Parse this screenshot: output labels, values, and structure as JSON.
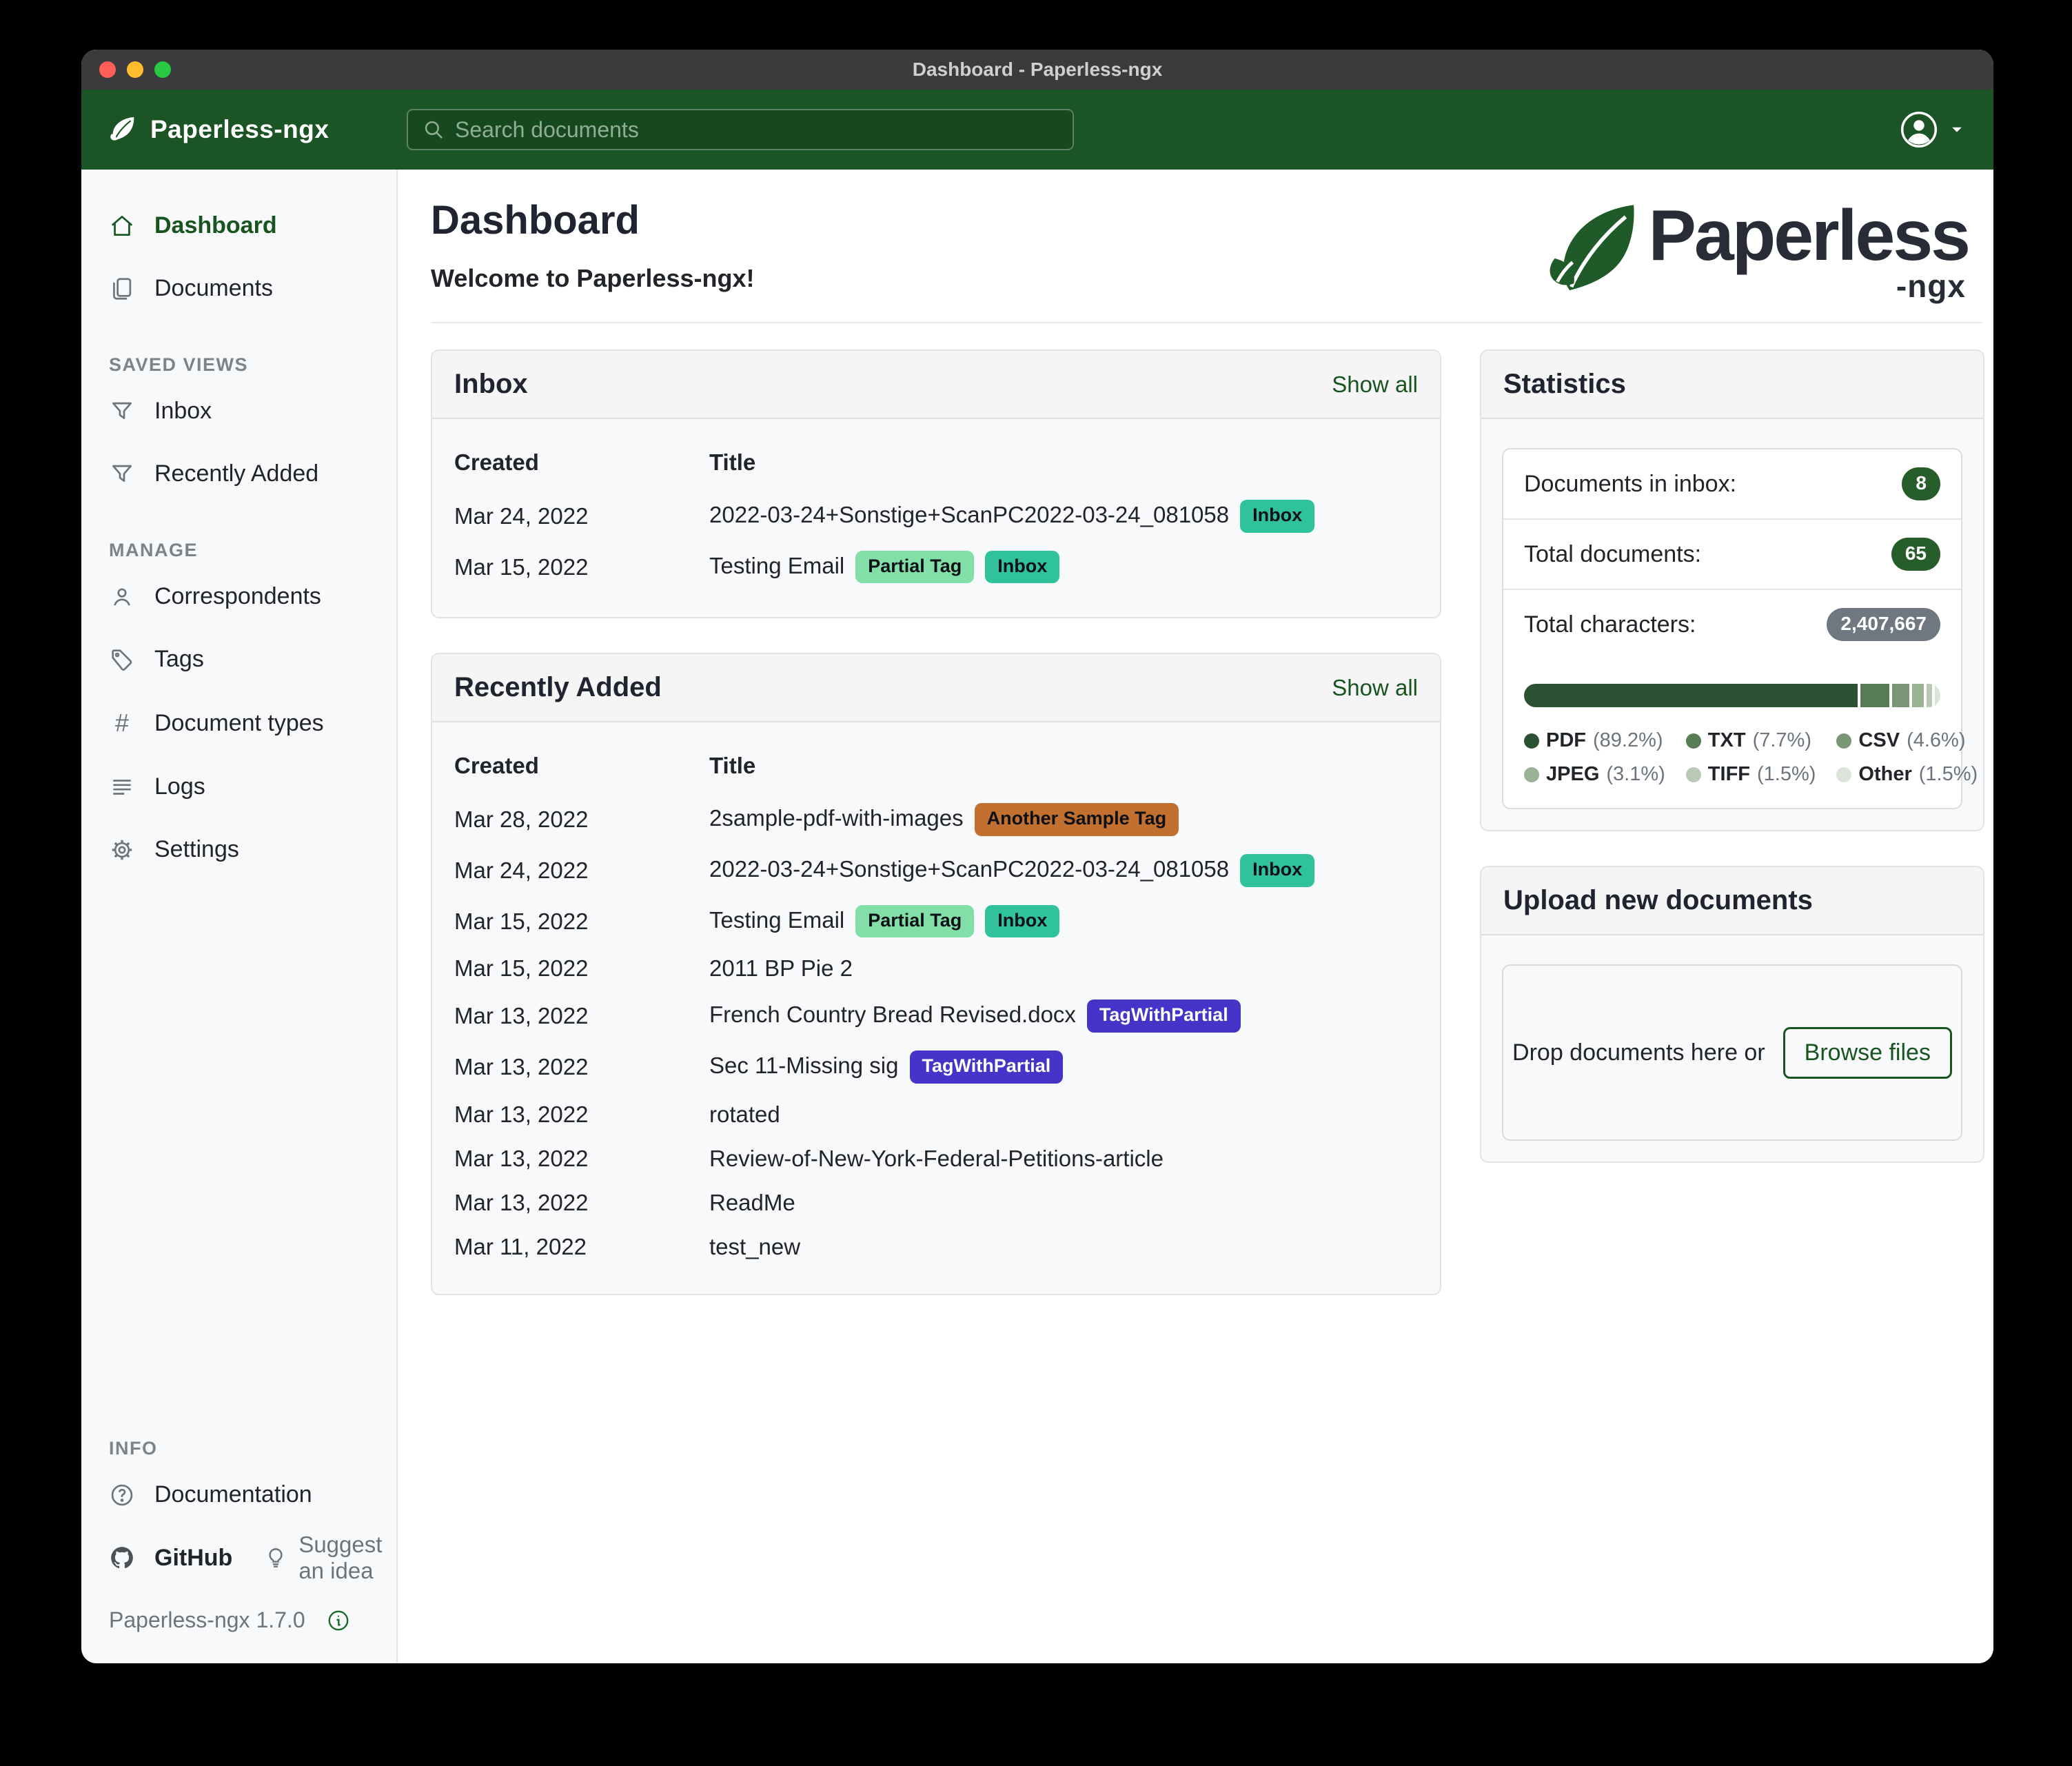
{
  "window": {
    "title": "Dashboard - Paperless-ngx"
  },
  "navbar": {
    "brand": "Paperless-ngx",
    "search_placeholder": "Search documents"
  },
  "sidebar": {
    "primary": [
      {
        "label": "Dashboard"
      },
      {
        "label": "Documents"
      }
    ],
    "sections": [
      {
        "heading": "SAVED VIEWS",
        "items": [
          {
            "label": "Inbox"
          },
          {
            "label": "Recently Added"
          }
        ]
      },
      {
        "heading": "MANAGE",
        "items": [
          {
            "label": "Correspondents"
          },
          {
            "label": "Tags"
          },
          {
            "label": "Document types"
          },
          {
            "label": "Logs"
          },
          {
            "label": "Settings"
          }
        ]
      }
    ],
    "info": {
      "heading": "INFO",
      "documentation": "Documentation",
      "github": "GitHub",
      "suggest": "Suggest an idea"
    },
    "version": "Paperless-ngx 1.7.0"
  },
  "main": {
    "title": "Dashboard",
    "welcome": "Welcome to Paperless-ngx!",
    "logo_text": "Paperless",
    "logo_sub": "-ngx",
    "cards": [
      {
        "title": "Inbox",
        "action": "Show all",
        "columns": [
          "Created",
          "Title"
        ],
        "rows": [
          {
            "created": "Mar 24, 2022",
            "title": "2022-03-24+Sonstige+ScanPC2022-03-24_081058",
            "tags": [
              {
                "label": "Inbox",
                "bg": "#30c29a",
                "fg": "#0d1117"
              }
            ]
          },
          {
            "created": "Mar 15, 2022",
            "title": "Testing Email",
            "tags": [
              {
                "label": "Partial Tag",
                "bg": "#82dfa8",
                "fg": "#0d1117"
              },
              {
                "label": "Inbox",
                "bg": "#30c29a",
                "fg": "#0d1117"
              }
            ]
          }
        ]
      },
      {
        "title": "Recently Added",
        "action": "Show all",
        "columns": [
          "Created",
          "Title"
        ],
        "rows": [
          {
            "created": "Mar 28, 2022",
            "title": "2sample-pdf-with-images",
            "tags": [
              {
                "label": "Another Sample Tag",
                "bg": "#c1702f",
                "fg": "#0d1117"
              }
            ]
          },
          {
            "created": "Mar 24, 2022",
            "title": "2022-03-24+Sonstige+ScanPC2022-03-24_081058",
            "tags": [
              {
                "label": "Inbox",
                "bg": "#30c29a",
                "fg": "#0d1117"
              }
            ]
          },
          {
            "created": "Mar 15, 2022",
            "title": "Testing Email",
            "tags": [
              {
                "label": "Partial Tag",
                "bg": "#82dfa8",
                "fg": "#0d1117"
              },
              {
                "label": "Inbox",
                "bg": "#30c29a",
                "fg": "#0d1117"
              }
            ]
          },
          {
            "created": "Mar 15, 2022",
            "title": "2011 BP Pie 2",
            "tags": []
          },
          {
            "created": "Mar 13, 2022",
            "title": "French Country Bread Revised.docx",
            "tags": [
              {
                "label": "TagWithPartial",
                "bg": "#4634c8",
                "fg": "#ffffff"
              }
            ]
          },
          {
            "created": "Mar 13, 2022",
            "title": "Sec 11-Missing sig",
            "tags": [
              {
                "label": "TagWithPartial",
                "bg": "#4634c8",
                "fg": "#ffffff"
              }
            ]
          },
          {
            "created": "Mar 13, 2022",
            "title": "rotated",
            "tags": []
          },
          {
            "created": "Mar 13, 2022",
            "title": "Review-of-New-York-Federal-Petitions-article",
            "tags": []
          },
          {
            "created": "Mar 13, 2022",
            "title": "ReadMe",
            "tags": []
          },
          {
            "created": "Mar 11, 2022",
            "title": "test_new",
            "tags": []
          }
        ]
      }
    ],
    "statistics": {
      "title": "Statistics",
      "rows": [
        {
          "label": "Documents in inbox:",
          "value": "8",
          "style": "green"
        },
        {
          "label": "Total documents:",
          "value": "65",
          "style": "green"
        },
        {
          "label": "Total characters:",
          "value": "2,407,667",
          "style": "gray"
        }
      ],
      "file_types": [
        {
          "name": "PDF",
          "pct": "89.2%",
          "bar": 82.9,
          "color": "#2d5233"
        },
        {
          "name": "TXT",
          "pct": "7.7%",
          "bar": 7.2,
          "color": "#587c54"
        },
        {
          "name": "CSV",
          "pct": "4.6%",
          "bar": 4.3,
          "color": "#7b9676"
        },
        {
          "name": "JPEG",
          "pct": "3.1%",
          "bar": 2.9,
          "color": "#9ab395"
        },
        {
          "name": "TIFF",
          "pct": "1.5%",
          "bar": 1.4,
          "color": "#bac9b5"
        },
        {
          "name": "Other",
          "pct": "1.5%",
          "bar": 1.3,
          "color": "#dce4d9"
        }
      ]
    },
    "upload": {
      "title": "Upload new documents",
      "drop_text": "Drop documents here or",
      "browse_label": "Browse files"
    }
  },
  "colors": {
    "navbar_green": "#1b5425",
    "accent_green": "#17541f",
    "badge_green_pill": "#275c2b",
    "badge_gray_pill": "#6f7780"
  }
}
